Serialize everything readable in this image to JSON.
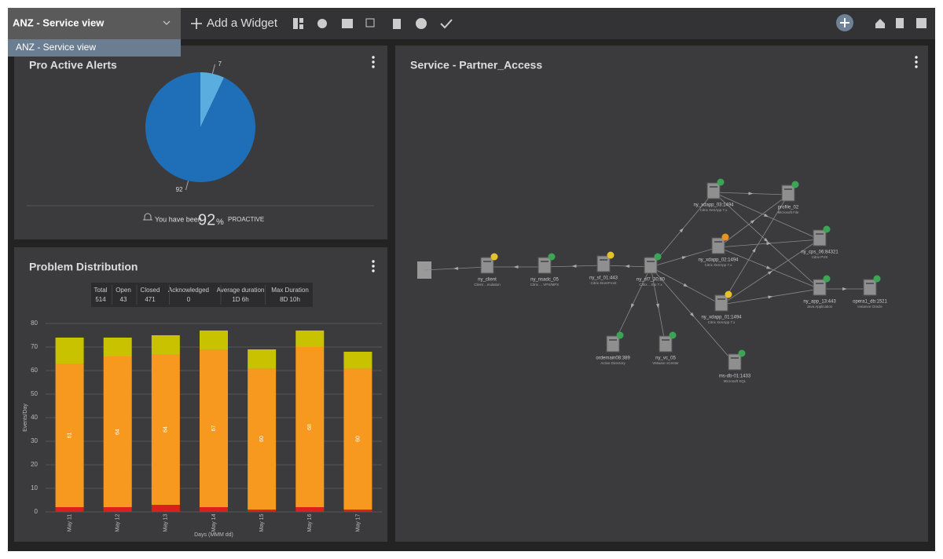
{
  "toolbar": {
    "dashboard_name": "ANZ - Service view",
    "add_widget": "Add a Widget",
    "menu_items": [
      "ANZ - Service view"
    ]
  },
  "widgets": [
    {
      "title": "Pro Active Alerts",
      "chart_data": {
        "type": "pie",
        "values": [
          92,
          7
        ],
        "colors": [
          "#1f6fb8",
          "#5aaddf"
        ]
      },
      "footer": {
        "prefix": "You have been",
        "value": "92",
        "unit": "%",
        "suffix": "PROACTIVE"
      }
    },
    {
      "title": "Problem Distribution",
      "stats": {
        "headers": [
          "Total",
          "Open",
          "Closed",
          "Acknowledged",
          "Average duration",
          "Max Duration"
        ],
        "values": [
          "514",
          "43",
          "471",
          "0",
          "1D 6h",
          "8D 10h"
        ]
      },
      "chart_data": {
        "type": "bar",
        "stacked": true,
        "categories": [
          "May 11",
          "May 12",
          "May 13",
          "May 14",
          "May 15",
          "May 16",
          "May 17"
        ],
        "series": [
          {
            "color": "#d8201c",
            "values": [
              2,
              2,
              3,
              2,
              1,
              2,
              1
            ]
          },
          {
            "color": "#f7981f",
            "values": [
              61,
              64,
              64,
              67,
              60,
              68,
              60
            ],
            "show_values": true
          },
          {
            "color": "#c8c200",
            "values": [
              11,
              8,
              8,
              8,
              8,
              7,
              7
            ]
          }
        ],
        "ylim": [
          0,
          80
        ],
        "yticks": [
          0,
          10,
          20,
          30,
          40,
          50,
          60,
          70,
          80
        ],
        "grid": true,
        "xlabel": "Days (MMM dd)",
        "ylabel": "Events/Day"
      }
    },
    {
      "title": "Service - Partner_Access",
      "nodes": [
        {
          "label": "ny_client",
          "sublabel": "Client ...mulation"
        },
        {
          "label": "ny_nsadc_05",
          "sublabel": "Citrix ... VPX/MPX"
        },
        {
          "label": "ny_sf_01:443",
          "sublabel": "Citrix StoreFront"
        },
        {
          "label": "ny_sf7_30:80",
          "sublabel": "Citrix ...Sto 7.x"
        },
        {
          "label": "ny_xdapp_03:1494",
          "sublabel": "Citrix XenApp 7.x"
        },
        {
          "label": "profile_02",
          "sublabel": "Microsoft File"
        },
        {
          "label": "ny_xdapp_02:1494",
          "sublabel": "Citrix XenApp 7.x"
        },
        {
          "label": "ny_cps_06:84321",
          "sublabel": "Citrix PVS"
        },
        {
          "label": "ny_xdapp_01:1494",
          "sublabel": "Citrix XenApp 7.x"
        },
        {
          "label": "ny_app_13:443",
          "sublabel": "Java Application"
        },
        {
          "label": "opera1_db:1521",
          "sublabel": "Instance Oracle"
        },
        {
          "label": "ordemain08:389",
          "sublabel": "Active Directory"
        },
        {
          "label": "ny_vc_05",
          "sublabel": "VMware vCenter"
        },
        {
          "label": "ms-db-01:1433",
          "sublabel": "Microsoft SQL"
        }
      ]
    }
  ]
}
